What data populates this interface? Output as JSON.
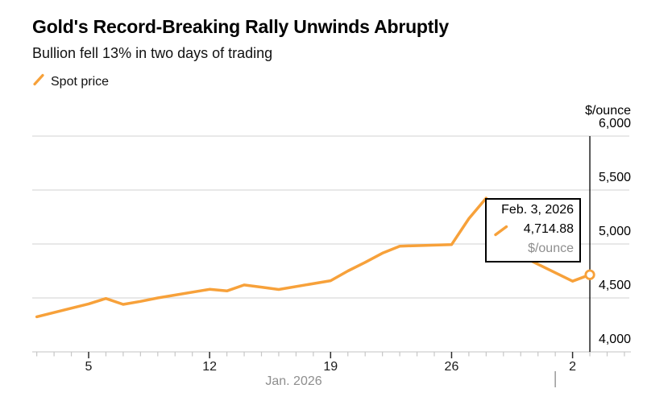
{
  "header": {
    "title": "Gold's Record-Breaking Rally Unwinds Abruptly",
    "subtitle": "Bullion fell 13% in two days of trading"
  },
  "legend": {
    "label": "Spot price"
  },
  "colors": {
    "accent": "#F7A13A",
    "gridline": "#DBDBDB",
    "axisline": "#CFCFCF",
    "minor-tick": "#C6C6C6",
    "major-tick": "#2B2B2B",
    "month-tick": "#999999",
    "crosshair": "#000000",
    "muted": "#8E8E8E",
    "text": "#000000"
  },
  "chart_data": {
    "type": "line",
    "title": "Gold's Record-Breaking Rally Unwinds Abruptly",
    "unit_label": "$/ounce",
    "ylabel": "$/ounce",
    "xlabel": "Jan. 2026",
    "ylim": [
      4000,
      6000
    ],
    "grid": true,
    "legend_position": "top-left",
    "y_ticks": [
      {
        "value": 6000,
        "label": "6,000"
      },
      {
        "value": 5500,
        "label": "5,500"
      },
      {
        "value": 5000,
        "label": "5,000"
      },
      {
        "value": 4500,
        "label": "4,500"
      },
      {
        "value": 4000,
        "label": "4,000"
      }
    ],
    "x_ticks": [
      {
        "day": 5,
        "label": "5"
      },
      {
        "day": 12,
        "label": "12"
      },
      {
        "day": 19,
        "label": "19"
      },
      {
        "day": 26,
        "label": "26"
      },
      {
        "day": 33,
        "label": "2"
      }
    ],
    "minor_tick_days": {
      "from": 2,
      "to": 36
    },
    "month_boundary_day": 32,
    "month_label": "Jan. 2026",
    "series": [
      {
        "name": "Spot price",
        "points": [
          {
            "date": "Jan 2, 2026",
            "day": 2,
            "value": 4325
          },
          {
            "date": "Jan 5, 2026",
            "day": 5,
            "value": 4445
          },
          {
            "date": "Jan 6, 2026",
            "day": 6,
            "value": 4495
          },
          {
            "date": "Jan 7, 2026",
            "day": 7,
            "value": 4440
          },
          {
            "date": "Jan 8, 2026",
            "day": 8,
            "value": 4468
          },
          {
            "date": "Jan 9, 2026",
            "day": 9,
            "value": 4500
          },
          {
            "date": "Jan 12, 2026",
            "day": 12,
            "value": 4580
          },
          {
            "date": "Jan 13, 2026",
            "day": 13,
            "value": 4565
          },
          {
            "date": "Jan 14, 2026",
            "day": 14,
            "value": 4620
          },
          {
            "date": "Jan 15, 2026",
            "day": 15,
            "value": 4600
          },
          {
            "date": "Jan 16, 2026",
            "day": 16,
            "value": 4578
          },
          {
            "date": "Jan 19, 2026",
            "day": 19,
            "value": 4660
          },
          {
            "date": "Jan 20, 2026",
            "day": 20,
            "value": 4750
          },
          {
            "date": "Jan 21, 2026",
            "day": 21,
            "value": 4830
          },
          {
            "date": "Jan 22, 2026",
            "day": 22,
            "value": 4915
          },
          {
            "date": "Jan 23, 2026",
            "day": 23,
            "value": 4980
          },
          {
            "date": "Jan 26, 2026",
            "day": 26,
            "value": 4995
          },
          {
            "date": "Jan 27, 2026",
            "day": 27,
            "value": 5235
          },
          {
            "date": "Jan 28, 2026",
            "day": 28,
            "value": 5425
          },
          {
            "date": "Jan 29, 2026",
            "day": 29,
            "value": 5170
          },
          {
            "date": "Jan 30, 2026",
            "day": 30,
            "value": 4890
          },
          {
            "date": "Feb 2, 2026",
            "day": 33,
            "value": 4655
          },
          {
            "date": "Feb 3, 2026",
            "day": 34,
            "value": 4714.88
          }
        ]
      }
    ],
    "highlight": {
      "day": 34,
      "value": 4714.88
    }
  },
  "tooltip": {
    "date": "Feb. 3, 2026",
    "value": "4,714.88",
    "unit": "$/ounce"
  }
}
